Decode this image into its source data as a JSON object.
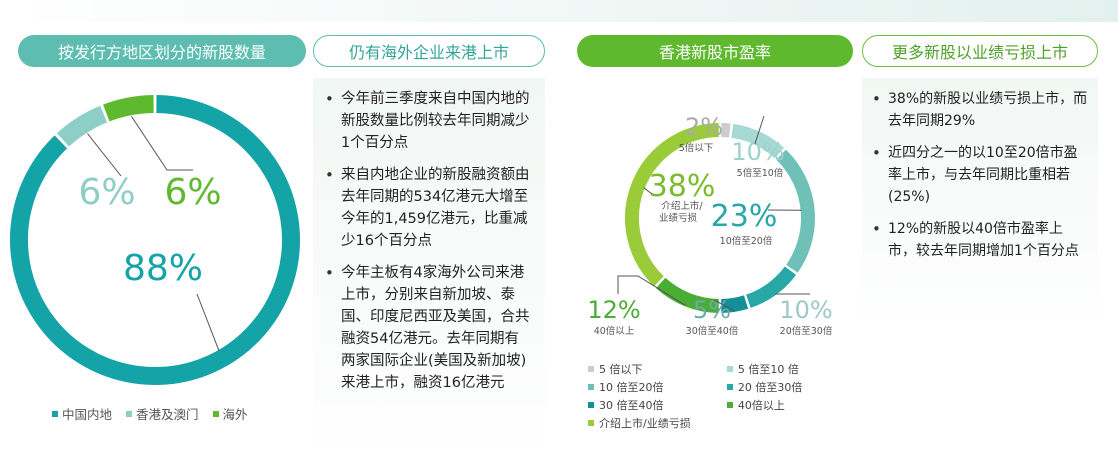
{
  "headers": {
    "left_title": "按发行方地区划分的新股数量",
    "mid_title": "仍有海外企业来港上市",
    "right_chart_title": "香港新股市盈率",
    "right_title": "更多新股以业绩亏损上市"
  },
  "colors": {
    "teal": "#5cbdb0",
    "dark_teal": "#14a3a6",
    "light_teal": "#8dcfc7",
    "green": "#5fb92f",
    "light_green": "#9acc39",
    "grey": "#cccccc"
  },
  "mid_bullets": [
    "今年前三季度来自中国内地的新股数量比例较去年同期减少1个百分点",
    "来自内地企业的新股融资额由去年同期的534亿港元大增至今年的1,459亿港元，比重减少16个百分点",
    "今年主板有4家海外公司来港上市，分别来自新加坡、泰国、印度尼西亚及美国，合共融资54亿港元。去年同期有两家国际企业(美国及新加坡)来港上市，融资16亿港元"
  ],
  "right_bullets": [
    "38%的新股以业绩亏损上市，而去年同期29%",
    "近四分之一的以10至20倍市盈率上市，与去年同期比重相若(25%)",
    "12%的新股以40倍市盈率上市，较去年同期增加1个百分点"
  ],
  "chart_data": [
    {
      "type": "pie",
      "title": "按发行方地区划分的新股数量",
      "categories": [
        "中国内地",
        "香港及澳门",
        "海外"
      ],
      "values": [
        88,
        6,
        6
      ],
      "value_labels": [
        "88%",
        "6%",
        "6%"
      ],
      "colors": [
        "#14a3a6",
        "#8dcfc7",
        "#5fb92f"
      ],
      "legend": [
        "中国内地",
        "香港及澳门",
        "海外"
      ],
      "legend_position": "bottom"
    },
    {
      "type": "pie",
      "title": "香港新股市盈率",
      "categories": [
        "5倍以下",
        "5倍至10倍",
        "10倍至20倍",
        "20倍至30倍",
        "30倍至40倍",
        "40倍以上",
        "介绍上市/业绩亏损"
      ],
      "values": [
        2,
        10,
        23,
        10,
        5,
        12,
        38
      ],
      "value_labels": [
        "2%",
        "10%",
        "23%",
        "10%",
        "5%",
        "12%",
        "38%"
      ],
      "slice_labels": [
        "5倍以下",
        "5倍至10倍",
        "10倍至20倍",
        "20倍至30倍",
        "30倍至40倍",
        "40倍以上",
        "介绍上市/业绩亏损"
      ],
      "colors": [
        "#cccccc",
        "#a6d9d3",
        "#6fc1b8",
        "#27a7a5",
        "#128f97",
        "#4aae35",
        "#9acc39"
      ],
      "legend": [
        [
          "5 倍以下",
          "5 倍至10 倍"
        ],
        [
          "10 倍至20倍",
          "20 倍至30倍"
        ],
        [
          "30 倍至40倍",
          "40倍以上"
        ],
        [
          "介绍上市/业绩亏损"
        ]
      ],
      "legend_position": "bottom"
    }
  ]
}
